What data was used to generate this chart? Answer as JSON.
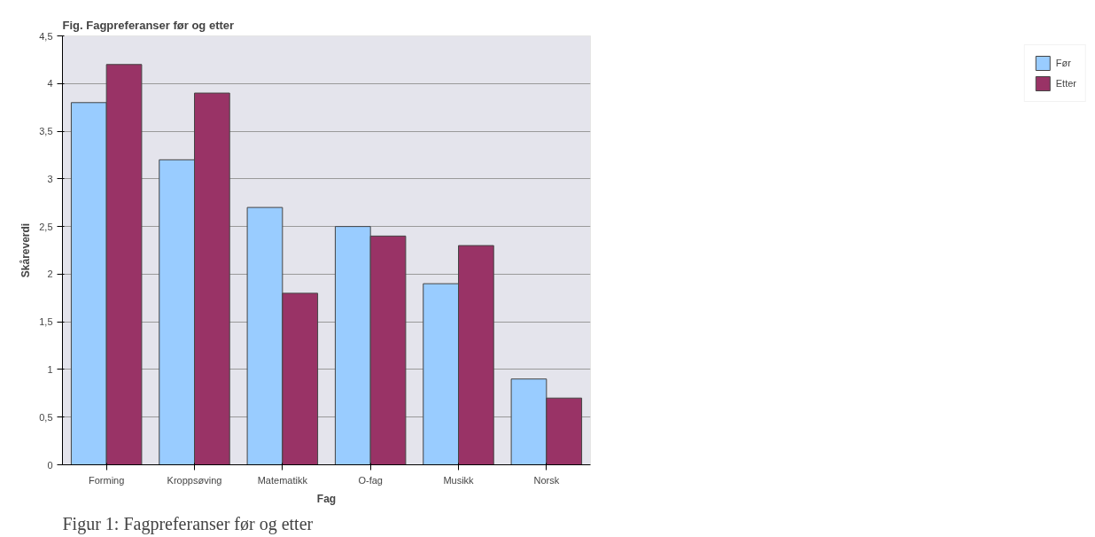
{
  "chart_data": {
    "type": "bar",
    "title": "Fig. Fagpreferanser før og etter",
    "xlabel": "Fag",
    "ylabel": "Skåreverdi",
    "categories": [
      "Forming",
      "Kroppsøving",
      "Matematikk",
      "O-fag",
      "Musikk",
      "Norsk"
    ],
    "series": [
      {
        "name": "Før",
        "color": "#99ccff",
        "values": [
          3.8,
          3.2,
          2.7,
          2.5,
          1.9,
          0.9
        ]
      },
      {
        "name": "Etter",
        "color": "#993366",
        "values": [
          4.2,
          3.9,
          1.8,
          2.4,
          2.3,
          0.7
        ]
      }
    ],
    "ylim": [
      0,
      4.5
    ],
    "yticks": [
      0,
      {
        "value": 0.5,
        "label": "0,5"
      },
      1,
      {
        "value": 1.5,
        "label": "1,5"
      },
      2,
      {
        "value": 2.5,
        "label": "2,5"
      },
      3,
      {
        "value": 3.5,
        "label": "3,5"
      },
      4,
      {
        "value": 4.5,
        "label": "4,5"
      }
    ],
    "grid": "y",
    "legend": "right",
    "annotations": [
      "Figur 1: Fagpreferanser før og etter"
    ]
  }
}
